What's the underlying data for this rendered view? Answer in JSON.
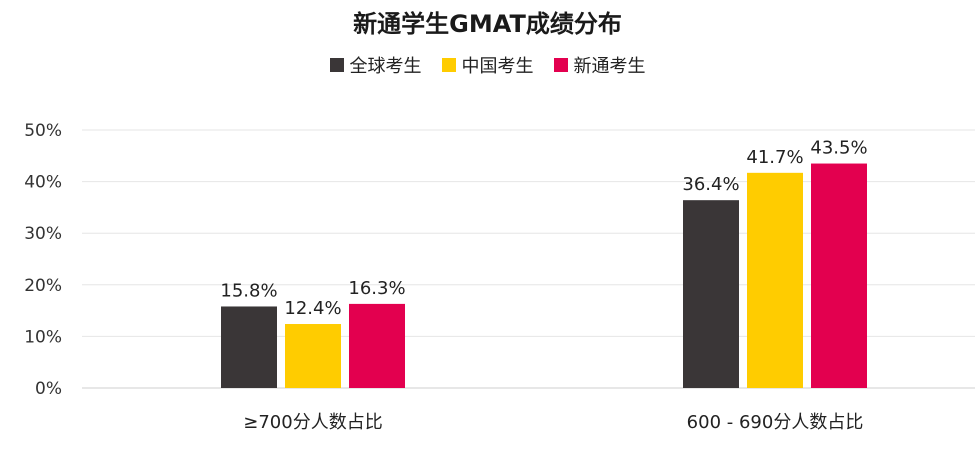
{
  "chart_data": {
    "type": "bar",
    "title": "新通学生GMAT成绩分布",
    "categories": [
      "≥700分人数占比",
      "600 - 690分人数占比"
    ],
    "series": [
      {
        "name": "全球考生",
        "values": [
          15.8,
          36.4
        ],
        "color": "#3a3637"
      },
      {
        "name": "中国考生",
        "values": [
          12.4,
          41.7
        ],
        "color": "#ffcc00"
      },
      {
        "name": "新通考生",
        "values": [
          16.3,
          43.5
        ],
        "color": "#e3004f"
      }
    ],
    "data_labels": [
      [
        "15.8%",
        "36.4%"
      ],
      [
        "12.4%",
        "41.7%"
      ],
      [
        "16.3%",
        "43.5%"
      ]
    ],
    "yticks": [
      "0%",
      "10%",
      "20%",
      "30%",
      "40%",
      "50%"
    ],
    "ylim": [
      0,
      50
    ],
    "grid": true,
    "legend_position": "top-center"
  }
}
